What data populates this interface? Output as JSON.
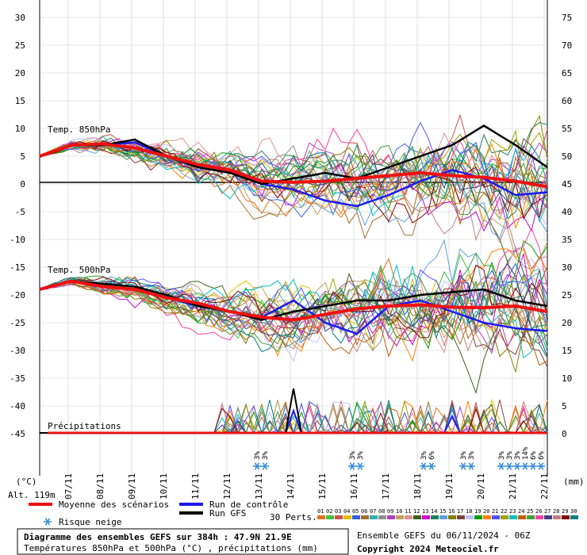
{
  "chart_data": {
    "type": "line",
    "title": "Diagramme des ensembles GEFS sur 384h : 47.9N 21.9E",
    "subtitle": "Températures 850hPa et 500hPa (°C) , précipitations (mm)",
    "left_axis": {
      "unit": "(°C)",
      "ticks": [
        30,
        25,
        20,
        15,
        10,
        5,
        0,
        -5,
        -10,
        -15,
        -20,
        -25,
        -30,
        -35,
        -40,
        -45
      ]
    },
    "right_axis": {
      "unit": "(mm)",
      "ticks": [
        75,
        70,
        65,
        60,
        55,
        50,
        45,
        40,
        35,
        30,
        25,
        20,
        15,
        10,
        5,
        0
      ]
    },
    "dates": [
      "07/11",
      "08/11",
      "09/11",
      "10/11",
      "11/11",
      "12/11",
      "13/11",
      "14/11",
      "15/11",
      "16/11",
      "17/11",
      "18/11",
      "19/11",
      "20/11",
      "21/11",
      "22/11"
    ],
    "altitude": "Alt. 119m",
    "panel_labels": {
      "t850": "Temp. 850hPa",
      "t500": "Temp. 500hPa",
      "precip": "Précipitations"
    },
    "x": [
      0,
      1,
      2,
      3,
      4,
      5,
      6,
      7,
      8,
      9,
      10,
      11,
      12,
      13,
      14,
      15,
      16
    ],
    "series": [
      {
        "name": "Moyenne des scénarios",
        "color": "#ee1111",
        "t850": [
          5,
          7,
          7.2,
          6.5,
          5,
          3.5,
          2.5,
          0.5,
          0.3,
          0.5,
          1,
          1.5,
          2,
          1.5,
          1.2,
          0.5,
          -0.5
        ],
        "t500": [
          -19,
          -17.5,
          -18.5,
          -19,
          -20.5,
          -21.5,
          -23,
          -24,
          -24.5,
          -23.5,
          -22.5,
          -22,
          -21.8,
          -22.2,
          -22.3,
          -22,
          -23
        ]
      },
      {
        "name": "Run de contrôle",
        "color": "#1a1aee",
        "t850": [
          5,
          7,
          7,
          7.5,
          5,
          3,
          2,
          0,
          -1,
          -3,
          -4,
          -2,
          0.5,
          2.5,
          1,
          -2,
          -1.5
        ],
        "t500": [
          -19,
          -17.5,
          -18.5,
          -19,
          -20.5,
          -22,
          -23,
          -24,
          -21,
          -25,
          -27,
          -22,
          -21,
          -23,
          -25,
          -26,
          -26.5
        ]
      },
      {
        "name": "Run GFS",
        "color": "#000000",
        "t850": [
          5,
          7,
          7,
          8,
          5,
          3,
          2,
          0,
          1,
          2,
          1,
          3,
          5,
          7,
          10.5,
          7,
          3
        ],
        "t500": [
          -19,
          -17.5,
          -18,
          -18.5,
          -20,
          -22,
          -23,
          -24.5,
          -23,
          -22,
          -21,
          -21,
          -20,
          -19.5,
          -19,
          -21,
          -22
        ]
      }
    ],
    "precip_control": [
      0,
      0,
      0,
      0,
      0,
      0,
      0,
      0,
      4,
      0,
      0,
      0,
      0,
      3,
      0,
      0,
      0
    ],
    "precip_gfs": [
      0,
      0,
      0,
      0,
      0,
      0,
      0,
      0,
      8,
      0,
      0,
      0,
      0,
      0,
      0,
      0,
      0
    ],
    "snow_risk": [
      {
        "day": 6.85,
        "labels": [
          "3%",
          "3%"
        ]
      },
      {
        "day": 9.85,
        "labels": [
          "3%",
          "3%"
        ]
      },
      {
        "day": 12.1,
        "labels": [
          "3%",
          "6%"
        ]
      },
      {
        "day": 13.35,
        "labels": [
          "3%",
          "3%"
        ]
      },
      {
        "day": 14.55,
        "labels": [
          "3%",
          "3%",
          "3%",
          "14%",
          "6%",
          "6%"
        ]
      }
    ],
    "legend": {
      "mean": "Moyenne des scénarios",
      "control": "Run de contrôle",
      "gfs": "Run GFS",
      "snow": "Risque neige",
      "perts": "30 Perts.",
      "pert_numbers": [
        "01",
        "02",
        "03",
        "04",
        "05",
        "06",
        "07",
        "08",
        "09",
        "10",
        "11",
        "12",
        "13",
        "14",
        "15",
        "16",
        "17",
        "18",
        "19",
        "20",
        "21",
        "22",
        "23",
        "24",
        "25",
        "26",
        "27",
        "28",
        "29",
        "30"
      ],
      "pert_colors": [
        "#e07020",
        "#40c040",
        "#d05050",
        "#e0c000",
        "#3060e0",
        "#a07030",
        "#30b0b0",
        "#909090",
        "#b040c0",
        "#c0a060",
        "#e09090",
        "#406020",
        "#d000d0",
        "#208060",
        "#60a0e0",
        "#808000",
        "#804040",
        "#c0c0ff",
        "#00a000",
        "#ff8000",
        "#5050ff",
        "#a0a000",
        "#00c0c0",
        "#c06000",
        "#40a040",
        "#ff40a0",
        "#404080",
        "#c08080",
        "#800000",
        "#008080"
      ]
    },
    "footer": {
      "title": "Diagramme des ensembles GEFS sur 384h : 47.9N 21.9E",
      "subtitle": "Températures 850hPa et 500hPa (°C) , précipitations (mm)",
      "run": "Ensemble GEFS du 06/11/2024 - 06Z",
      "copyright": "Copyright 2024 Meteociel.fr"
    }
  }
}
